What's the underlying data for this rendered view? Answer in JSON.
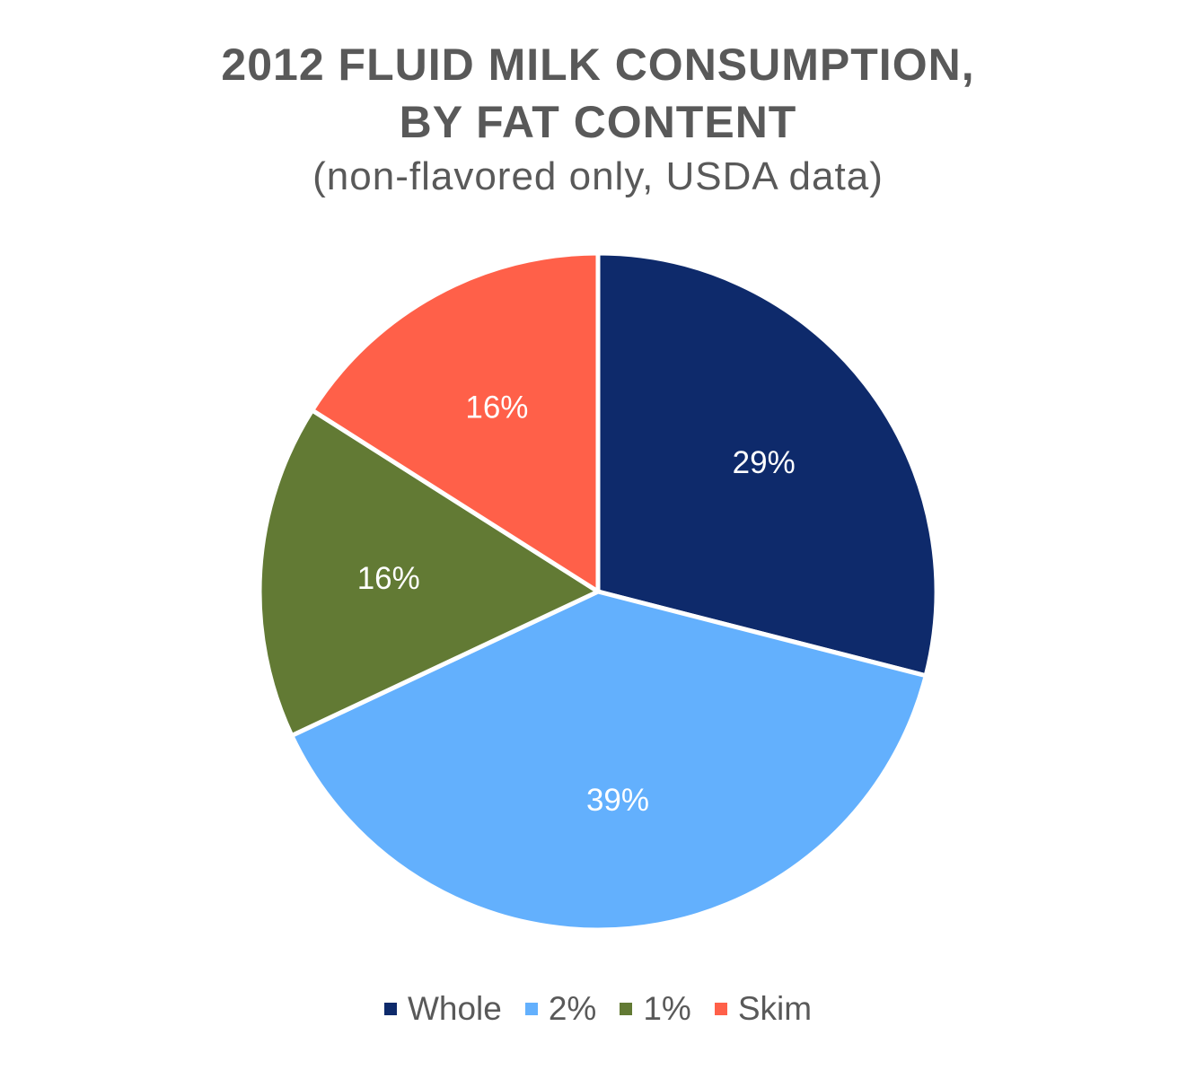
{
  "chart_data": {
    "type": "pie",
    "title_lines": [
      "2012 FLUID MILK CONSUMPTION,",
      "BY FAT CONTENT"
    ],
    "subtitle": "(non-flavored only, USDA data)",
    "categories": [
      "Whole",
      "2%",
      "1%",
      "Skim"
    ],
    "values": [
      29,
      39,
      16,
      16
    ],
    "data_labels": [
      "29%",
      "39%",
      "16%",
      "16%"
    ],
    "colors": [
      "#0E2A6B",
      "#63B0FD",
      "#627A34",
      "#FF6049"
    ],
    "legend_position": "bottom",
    "start_angle_deg": 0,
    "direction": "clockwise"
  }
}
